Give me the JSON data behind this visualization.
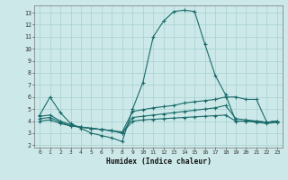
{
  "xlabel": "Humidex (Indice chaleur)",
  "bg_color": "#cce8e8",
  "grid_color": "#a8d0d0",
  "line_color": "#1a6b6b",
  "xlim": [
    -0.5,
    23.5
  ],
  "ylim": [
    1.8,
    13.6
  ],
  "xticks": [
    0,
    1,
    2,
    3,
    4,
    5,
    6,
    7,
    8,
    9,
    10,
    11,
    12,
    13,
    14,
    15,
    16,
    17,
    18,
    19,
    20,
    21,
    22,
    23
  ],
  "yticks": [
    2,
    3,
    4,
    5,
    6,
    7,
    8,
    9,
    10,
    11,
    12,
    13
  ],
  "line1": [
    4.5,
    6.0,
    4.7,
    3.8,
    3.4,
    3.0,
    2.8,
    2.6,
    2.3,
    5.0,
    7.2,
    11.0,
    12.3,
    13.1,
    13.2,
    13.1,
    10.4,
    7.8,
    6.2,
    4.0,
    4.0,
    3.9,
    3.8,
    3.9
  ],
  "line2": [
    4.4,
    4.5,
    4.0,
    3.7,
    3.5,
    3.4,
    3.3,
    3.2,
    3.1,
    4.8,
    4.95,
    5.1,
    5.2,
    5.3,
    5.5,
    5.6,
    5.7,
    5.8,
    6.0,
    6.0,
    5.8,
    5.8,
    3.9,
    4.0
  ],
  "line3": [
    4.2,
    4.3,
    3.9,
    3.6,
    3.5,
    3.4,
    3.3,
    3.2,
    3.0,
    4.3,
    4.4,
    4.5,
    4.6,
    4.7,
    4.8,
    4.9,
    5.0,
    5.1,
    5.3,
    4.2,
    4.1,
    4.0,
    3.9,
    4.0
  ],
  "line4": [
    4.0,
    4.1,
    3.8,
    3.6,
    3.5,
    3.4,
    3.3,
    3.2,
    3.0,
    4.0,
    4.1,
    4.15,
    4.2,
    4.25,
    4.3,
    4.35,
    4.4,
    4.45,
    4.5,
    4.0,
    4.0,
    4.0,
    3.9,
    4.0
  ]
}
